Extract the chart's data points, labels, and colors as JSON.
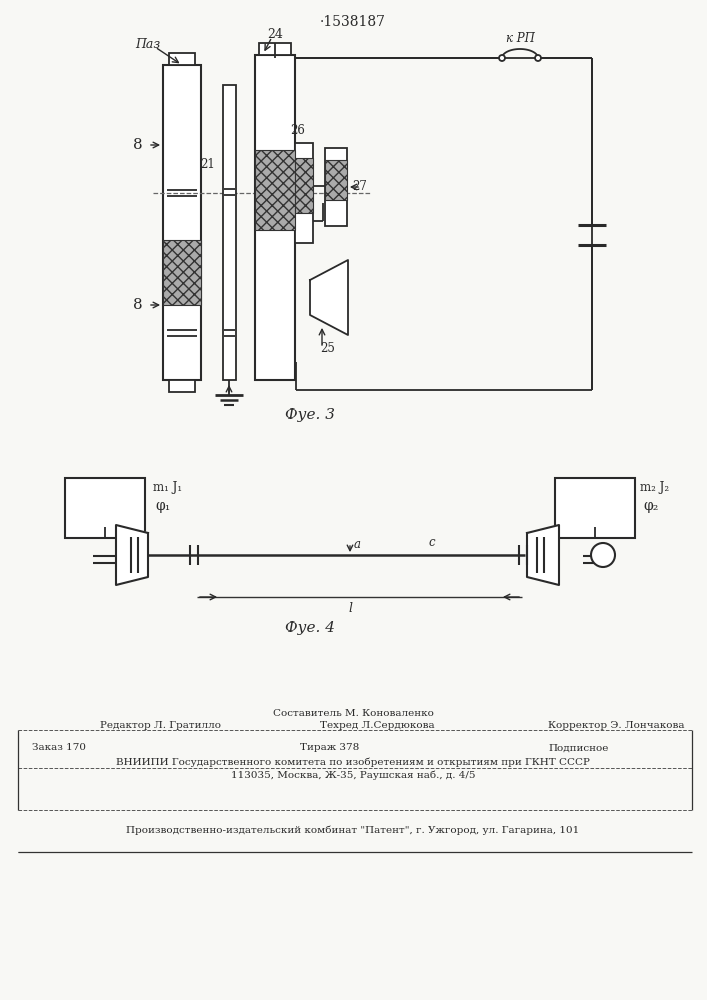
{
  "title": "·1538187",
  "fig3_caption": "Фуе. 3",
  "fig4_caption": "Фуе. 4",
  "label_paz": "Паз",
  "label_kRP": "к РП",
  "label_8a": "8",
  "label_8b": "8",
  "label_21": "21",
  "label_24": "24",
  "label_25": "25",
  "label_26": "26",
  "label_27": "27",
  "label_m1J1": "m₁ J₁",
  "label_phi1": "φ₁",
  "label_m2J2": "m₂ J₂",
  "label_phi2": "φ₂",
  "label_a": "a",
  "label_l": "l",
  "label_c": "c",
  "footer_sestavitel": "Составитель М. Коноваленко",
  "footer_redaktor": "Редактор Л. Гратилло",
  "footer_tehred": "Техред Л.Сердюкова",
  "footer_korrektor": "Корректор Э. Лончакова",
  "footer_zakaz": "Заказ 170",
  "footer_tirazh": "Тираж 378",
  "footer_podpisnoe": "Подписное",
  "footer_vniipи": "ВНИИПИ Государственного комитета по изобретениям и открытиям при ГКНТ СССР",
  "footer_address": "113035, Москва, Ж-35, Раушская наб., д. 4/5",
  "footer_patent": "Производственно-издательский комбинат \"Патент\", г. Ужгород, ул. Гагарина, 101",
  "bg_color": "#f8f8f5",
  "line_color": "#2a2a2a"
}
